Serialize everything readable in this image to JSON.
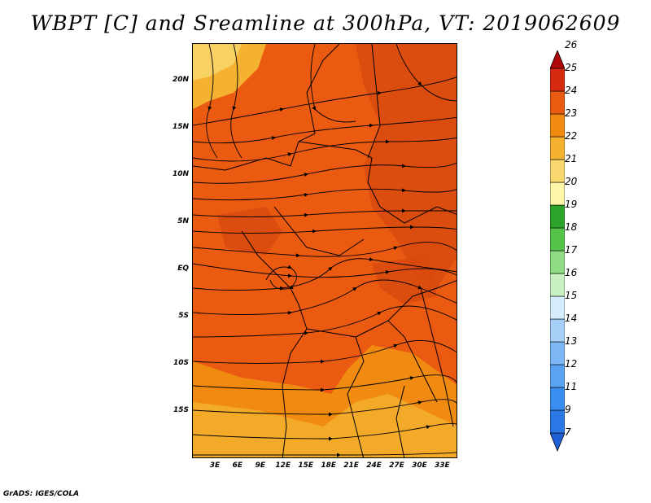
{
  "title": "WBPT [C] and Sreamline at 300hPa, VT: 2019062609",
  "credit": "GrADS: IGES/COLA",
  "map": {
    "lon_range": [
      0,
      35
    ],
    "lat_range": [
      -20,
      24
    ],
    "lat_ticks": [
      {
        "value": 20,
        "label": "20N"
      },
      {
        "value": 15,
        "label": "15N"
      },
      {
        "value": 10,
        "label": "10N"
      },
      {
        "value": 5,
        "label": "5N"
      },
      {
        "value": 0,
        "label": "EQ"
      },
      {
        "value": -5,
        "label": "5S"
      },
      {
        "value": -10,
        "label": "10S"
      },
      {
        "value": -15,
        "label": "15S"
      }
    ],
    "lon_ticks": [
      {
        "value": 3,
        "label": "3E"
      },
      {
        "value": 6,
        "label": "6E"
      },
      {
        "value": 9,
        "label": "9E"
      },
      {
        "value": 12,
        "label": "12E"
      },
      {
        "value": 15,
        "label": "15E"
      },
      {
        "value": 18,
        "label": "18E"
      },
      {
        "value": 21,
        "label": "21E"
      },
      {
        "value": 24,
        "label": "24E"
      },
      {
        "value": 27,
        "label": "27E"
      },
      {
        "value": 30,
        "label": "30E"
      },
      {
        "value": 33,
        "label": "33E"
      }
    ]
  },
  "colorbar": {
    "levels": [
      "7",
      "9",
      "11",
      "12",
      "13",
      "14",
      "15",
      "16",
      "17",
      "18",
      "19",
      "20",
      "21",
      "22",
      "23",
      "24",
      "25",
      "26"
    ],
    "colors": [
      "#1f5fd6",
      "#2a78e6",
      "#3a8ef0",
      "#5aa3f3",
      "#7db7f5",
      "#a6d0f8",
      "#d4ecfb",
      "#c9f0c0",
      "#8fdc84",
      "#55c24a",
      "#2ea32c",
      "#fff6a8",
      "#f9d870",
      "#f5b230",
      "#f18a10",
      "#ea5a10",
      "#d62a10",
      "#b00808"
    ]
  }
}
